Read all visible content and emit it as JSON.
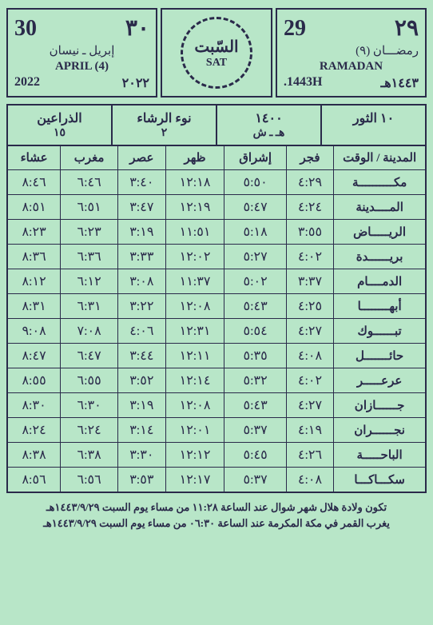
{
  "header": {
    "gregorian": {
      "day_latin": "30",
      "day_arabic": "٣٠",
      "month_arabic": "إبريل ـ نيسان",
      "month_latin": "APRIL (4)",
      "year_latin": "2022",
      "year_arabic": "٢٠٢٢"
    },
    "hijri": {
      "day_latin": "29",
      "day_arabic": "٢٩",
      "month_arabic": "رمضـــان (٩)",
      "month_latin": "RAMADAN",
      "year_latin": "1443H.",
      "year_arabic": "١٤٤٣هـ"
    },
    "emblem": {
      "day_arabic": "السّبت",
      "day_english": "SAT"
    }
  },
  "subheader": {
    "cell1": {
      "line1": "الذراعين",
      "line2": "١٥"
    },
    "cell2": {
      "line1": "نوء الرشاء",
      "line2": "٢"
    },
    "cell3": {
      "line1": "١٤٠٠",
      "line2": "هـ ـ ش"
    },
    "cell4": {
      "line1": "١٠   الثور",
      "line2": ""
    }
  },
  "table": {
    "columns": [
      "المدينة / الوقت",
      "فجر",
      "إشراق",
      "ظهر",
      "عصر",
      "مغرب",
      "عشاء"
    ],
    "rows": [
      [
        "مكــــــــــة",
        "٤:٢٩",
        "٥:٥٠",
        "١٢:١٨",
        "٣:٤٠",
        "٦:٤٦",
        "٨:٤٦"
      ],
      [
        "المــــدينة",
        "٤:٢٤",
        "٥:٤٧",
        "١٢:١٩",
        "٣:٤٧",
        "٦:٥١",
        "٨:٥١"
      ],
      [
        "الريـــــاض",
        "٣:٥٥",
        "٥:١٨",
        "١١:٥١",
        "٣:١٩",
        "٦:٢٣",
        "٨:٢٣"
      ],
      [
        "بريــــــدة",
        "٤:٠٢",
        "٥:٢٧",
        "١٢:٠٢",
        "٣:٣٣",
        "٦:٣٦",
        "٨:٣٦"
      ],
      [
        "الدمــــام",
        "٣:٣٧",
        "٥:٠٢",
        "١١:٣٧",
        "٣:٠٨",
        "٦:١٢",
        "٨:١٢"
      ],
      [
        "أبهــــــــا",
        "٤:٢٥",
        "٥:٤٣",
        "١٢:٠٨",
        "٣:٢٢",
        "٦:٣١",
        "٨:٣١"
      ],
      [
        "تبــــــوك",
        "٤:٢٧",
        "٥:٥٤",
        "١٢:٣١",
        "٤:٠٦",
        "٧:٠٨",
        "٩:٠٨"
      ],
      [
        "حائـــــــل",
        "٤:٠٨",
        "٥:٣٥",
        "١٢:١١",
        "٣:٤٤",
        "٦:٤٧",
        "٨:٤٧"
      ],
      [
        "عرعـــــر",
        "٤:٠٢",
        "٥:٣٢",
        "١٢:١٤",
        "٣:٥٢",
        "٦:٥٥",
        "٨:٥٥"
      ],
      [
        "جــــــازان",
        "٤:٢٧",
        "٥:٤٣",
        "١٢:٠٨",
        "٣:١٩",
        "٦:٣٠",
        "٨:٣٠"
      ],
      [
        "نجــــــران",
        "٤:١٩",
        "٥:٣٧",
        "١٢:٠١",
        "٣:١٤",
        "٦:٢٤",
        "٨:٢٤"
      ],
      [
        "الباحـــــة",
        "٤:٢٦",
        "٥:٤٥",
        "١٢:١٢",
        "٣:٣٠",
        "٦:٣٨",
        "٨:٣٨"
      ],
      [
        "سكـــاكـــا",
        "٤:٠٨",
        "٥:٣٧",
        "١٢:١٧",
        "٣:٥٣",
        "٦:٥٦",
        "٨:٥٦"
      ]
    ]
  },
  "footer": {
    "line1": "تكون ولادة هلال شهر شوال عند الساعة ١١:٢٨ من مساء يوم السبت ١٤٤٣/٩/٢٩هـ",
    "line2": "يغرب القمر في مكة المكرمة عند الساعة ٠٦:٣٠ من مساء يوم السبت ١٤٤٣/٩/٢٩هـ"
  },
  "colors": {
    "background": "#b8e6c8",
    "border": "#2a2a4a",
    "text": "#2a2a4a"
  }
}
